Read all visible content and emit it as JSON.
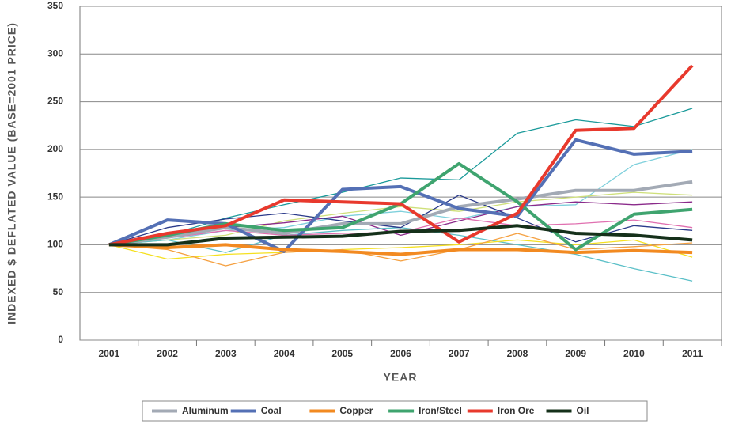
{
  "chart_data": {
    "type": "line",
    "y_label": "INDEXED $ DEFLATED VALUE (BASE=2001 PRICE)",
    "x_label": "YEAR",
    "categories": [
      "2001",
      "2002",
      "2003",
      "2004",
      "2005",
      "2006",
      "2007",
      "2008",
      "2009",
      "2010",
      "2011"
    ],
    "ylim": [
      0,
      350
    ],
    "yticks": [
      0,
      50,
      100,
      150,
      200,
      250,
      300,
      350
    ],
    "grid": true,
    "series": [
      {
        "color": "#1a9a9a",
        "values": [
          100,
          110,
          128,
          142,
          155,
          170,
          168,
          217,
          231,
          224,
          243
        ]
      },
      {
        "color": "#7fd0dc",
        "values": [
          100,
          105,
          115,
          118,
          130,
          135,
          127,
          140,
          142,
          184,
          200
        ]
      },
      {
        "color": "#cfe07a",
        "values": [
          100,
          105,
          110,
          125,
          133,
          140,
          135,
          145,
          150,
          155,
          152
        ]
      },
      {
        "color": "#8a2a8a",
        "values": [
          100,
          112,
          118,
          123,
          130,
          110,
          125,
          140,
          145,
          142,
          145
        ]
      },
      {
        "color": "#5cc0c8",
        "values": [
          100,
          105,
          92,
          110,
          115,
          118,
          110,
          100,
          90,
          75,
          62
        ]
      },
      {
        "color": "#f5e020",
        "values": [
          100,
          85,
          90,
          92,
          95,
          97,
          100,
          105,
          100,
          105,
          87
        ]
      },
      {
        "color": "#f5a040",
        "values": [
          100,
          95,
          78,
          92,
          95,
          83,
          95,
          112,
          95,
          98,
          102
        ]
      },
      {
        "color": "#2a3a8a",
        "values": [
          100,
          118,
          127,
          133,
          125,
          118,
          152,
          128,
          103,
          120,
          115
        ]
      },
      {
        "color": "#e070b0",
        "values": [
          100,
          107,
          115,
          110,
          112,
          113,
          128,
          120,
          122,
          126,
          118
        ]
      },
      {
        "name": "Aluminum",
        "color": "#a3aab5",
        "values": [
          100,
          108,
          118,
          112,
          122,
          122,
          140,
          148,
          157,
          157,
          166
        ]
      },
      {
        "name": "Coal",
        "color": "#5470b5",
        "values": [
          100,
          126,
          122,
          93,
          158,
          161,
          138,
          130,
          210,
          195,
          198
        ]
      },
      {
        "name": "Copper",
        "color": "#f28a21",
        "values": [
          100,
          97,
          100,
          95,
          93,
          90,
          95,
          95,
          92,
          94,
          92
        ]
      },
      {
        "name": "Iron/Steel",
        "color": "#3fa46f",
        "values": [
          100,
          110,
          122,
          115,
          118,
          143,
          185,
          145,
          95,
          132,
          137
        ]
      },
      {
        "name": "Iron Ore",
        "color": "#e8392d",
        "values": [
          100,
          112,
          120,
          147,
          145,
          143,
          103,
          133,
          220,
          222,
          288
        ]
      },
      {
        "name": "Oil",
        "color": "#15301a",
        "values": [
          100,
          100,
          107,
          108,
          109,
          114,
          115,
          120,
          112,
          110,
          105
        ]
      }
    ]
  }
}
